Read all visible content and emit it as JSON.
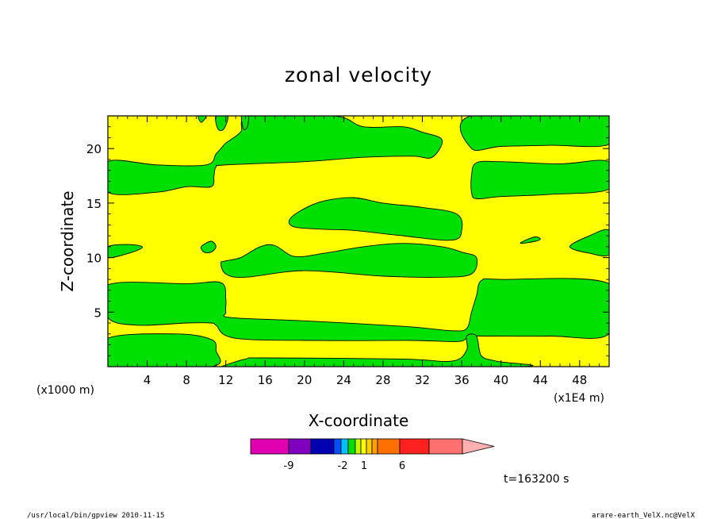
{
  "chart_data": {
    "type": "heatmap",
    "title": "zonal velocity",
    "xlabel": "X-coordinate",
    "ylabel": "Z-coordinate",
    "x_unit_label": "(x1E4 m)",
    "y_unit_label": "(x1000 m)",
    "xlim": [
      0,
      51
    ],
    "ylim": [
      0,
      23
    ],
    "x_ticks": [
      "4",
      "8",
      "12",
      "16",
      "20",
      "24",
      "28",
      "32",
      "36",
      "40",
      "44",
      "48"
    ],
    "y_ticks": [
      "5",
      "10",
      "15",
      "20"
    ],
    "x_tick_values": [
      4,
      8,
      12,
      16,
      20,
      24,
      28,
      32,
      36,
      40,
      44,
      48
    ],
    "y_tick_values": [
      5,
      10,
      15,
      20
    ],
    "fields": {
      "background_color": "#ffff00",
      "band_color": "#00e000"
    },
    "regions": [
      {
        "level": "positive",
        "outline": [
          [
            0,
            0
          ],
          [
            10.5,
            0
          ],
          [
            11,
            1.5
          ],
          [
            10.5,
            2.5
          ],
          [
            7,
            3
          ],
          [
            0,
            2.6
          ]
        ]
      },
      {
        "level": "positive",
        "outline": [
          [
            0,
            7.5
          ],
          [
            8,
            7.6
          ],
          [
            11.5,
            7.7
          ],
          [
            12,
            6.2
          ],
          [
            12,
            5
          ],
          [
            12.5,
            4.5
          ],
          [
            20,
            4.2
          ],
          [
            30,
            3.7
          ],
          [
            35,
            3.3
          ],
          [
            36.5,
            3.5
          ],
          [
            37,
            5
          ],
          [
            37.5,
            6.5
          ],
          [
            38,
            7.9
          ],
          [
            40,
            8
          ],
          [
            51,
            7.6
          ],
          [
            51,
            3
          ],
          [
            45,
            2.8
          ],
          [
            39,
            2.8
          ],
          [
            37,
            2.8
          ],
          [
            36.5,
            2.6
          ],
          [
            35.5,
            2.3
          ],
          [
            31,
            2.4
          ],
          [
            22,
            2.4
          ],
          [
            13,
            2.6
          ],
          [
            11,
            3.8
          ],
          [
            10.5,
            4
          ],
          [
            8,
            4
          ],
          [
            3,
            3.8
          ],
          [
            0,
            4.5
          ]
        ]
      },
      {
        "level": "positive",
        "outline": [
          [
            11.5,
            0
          ],
          [
            14,
            0.7
          ],
          [
            16,
            0.8
          ],
          [
            30,
            0.7
          ],
          [
            35,
            0.5
          ],
          [
            36.5,
            1.5
          ],
          [
            36.5,
            2.8
          ],
          [
            37.5,
            2.8
          ],
          [
            38,
            1
          ],
          [
            39.5,
            0.5
          ],
          [
            41.5,
            0
          ],
          [
            11.5,
            0
          ]
        ]
      },
      {
        "level": "positive",
        "outline": [
          [
            11.5,
            9.5
          ],
          [
            12,
            8.5
          ],
          [
            14,
            8.2
          ],
          [
            20,
            8.8
          ],
          [
            28,
            8.3
          ],
          [
            34,
            8.2
          ],
          [
            37,
            8.5
          ],
          [
            37.5,
            10
          ],
          [
            36,
            10.5
          ],
          [
            34,
            11
          ],
          [
            30,
            11.3
          ],
          [
            26,
            11
          ],
          [
            22,
            10.4
          ],
          [
            19,
            10.1
          ],
          [
            17,
            11.1
          ],
          [
            15.5,
            11
          ],
          [
            13.5,
            10
          ],
          [
            12,
            9.7
          ]
        ]
      },
      {
        "level": "positive",
        "outline": [
          [
            18.5,
            13.5
          ],
          [
            20,
            14.5
          ],
          [
            22,
            15.2
          ],
          [
            25,
            15.5
          ],
          [
            28,
            15
          ],
          [
            32,
            14.6
          ],
          [
            35.5,
            14
          ],
          [
            36,
            12.5
          ],
          [
            35,
            11.6
          ],
          [
            30,
            12
          ],
          [
            25,
            12.5
          ],
          [
            22,
            12.6
          ],
          [
            19,
            12.8
          ]
        ]
      },
      {
        "level": "positive",
        "outline": [
          [
            0,
            16
          ],
          [
            5,
            16
          ],
          [
            8,
            16.5
          ],
          [
            10.5,
            16.5
          ],
          [
            10.8,
            17.5
          ],
          [
            11,
            18.3
          ],
          [
            12,
            18.5
          ],
          [
            20,
            18.8
          ],
          [
            26,
            19.2
          ],
          [
            31,
            19.3
          ],
          [
            33,
            19.2
          ],
          [
            34,
            20.8
          ],
          [
            32,
            21.5
          ],
          [
            30,
            22
          ],
          [
            26,
            22
          ],
          [
            23,
            23
          ],
          [
            14.5,
            23
          ],
          [
            13.5,
            21.5
          ],
          [
            12,
            20.5
          ],
          [
            11.5,
            20
          ],
          [
            11,
            19.5
          ],
          [
            10,
            18.5
          ],
          [
            5,
            18.5
          ],
          [
            0,
            18.8
          ]
        ]
      },
      {
        "level": "positive",
        "outline": [
          [
            37,
            17.5
          ],
          [
            37.5,
            18.7
          ],
          [
            40,
            18.8
          ],
          [
            46,
            18.6
          ],
          [
            51,
            18.8
          ],
          [
            51,
            16.3
          ],
          [
            45,
            15.8
          ],
          [
            40,
            15.6
          ],
          [
            37.5,
            15.4
          ],
          [
            37,
            16
          ]
        ]
      },
      {
        "level": "positive",
        "outline": [
          [
            37,
            20
          ],
          [
            40,
            20.2
          ],
          [
            45,
            20.3
          ],
          [
            51,
            20.4
          ],
          [
            51,
            23
          ],
          [
            37,
            23
          ]
        ]
      },
      {
        "level": "positive",
        "outline": [
          [
            0,
            11
          ],
          [
            2,
            11.2
          ],
          [
            3.5,
            11
          ],
          [
            2.5,
            10.5
          ],
          [
            0,
            10
          ]
        ]
      },
      {
        "level": "positive",
        "outline": [
          [
            47,
            11
          ],
          [
            49,
            12
          ],
          [
            51,
            12.5
          ],
          [
            51,
            10.3
          ],
          [
            49,
            10.4
          ]
        ]
      },
      {
        "level": "positive",
        "outline": [
          [
            9.5,
            11
          ],
          [
            10.5,
            11.5
          ],
          [
            11,
            11
          ],
          [
            10.5,
            10.5
          ],
          [
            9.8,
            10.5
          ]
        ]
      },
      {
        "level": "positive",
        "outline": [
          [
            42,
            11.3
          ],
          [
            43.5,
            11.5
          ],
          [
            44,
            11.7
          ],
          [
            43.5,
            11.9
          ],
          [
            42.5,
            11.6
          ]
        ]
      },
      {
        "level": "positive",
        "outline": [
          [
            9.5,
            22.4
          ],
          [
            10,
            23
          ],
          [
            9.2,
            23
          ]
        ]
      },
      {
        "level": "positive",
        "outline": [
          [
            11.2,
            21.8
          ],
          [
            11.8,
            21.8
          ],
          [
            12.2,
            23
          ],
          [
            11,
            23
          ]
        ]
      },
      {
        "level": "positive",
        "outline": [
          [
            13.8,
            21.8
          ],
          [
            14.2,
            22
          ],
          [
            14.3,
            23
          ],
          [
            13.6,
            23
          ]
        ]
      }
    ]
  },
  "colorbar": {
    "labels": [
      "-9",
      "-2",
      "1",
      "6"
    ],
    "colors": [
      "#e000b0",
      "#8000c0",
      "#0000b0",
      "#0050ff",
      "#00c0ff",
      "#00e000",
      "#c0ff00",
      "#ffff00",
      "#ffd000",
      "#ffa000",
      "#ff7000",
      "#ff2020",
      "#ff7070",
      "#ffb0b0"
    ]
  },
  "time_label": "t=163200 s",
  "footer": {
    "left": "/usr/local/bin/gpview  2010-11-15",
    "right": "arare-earth_VelX.nc@VelX"
  }
}
